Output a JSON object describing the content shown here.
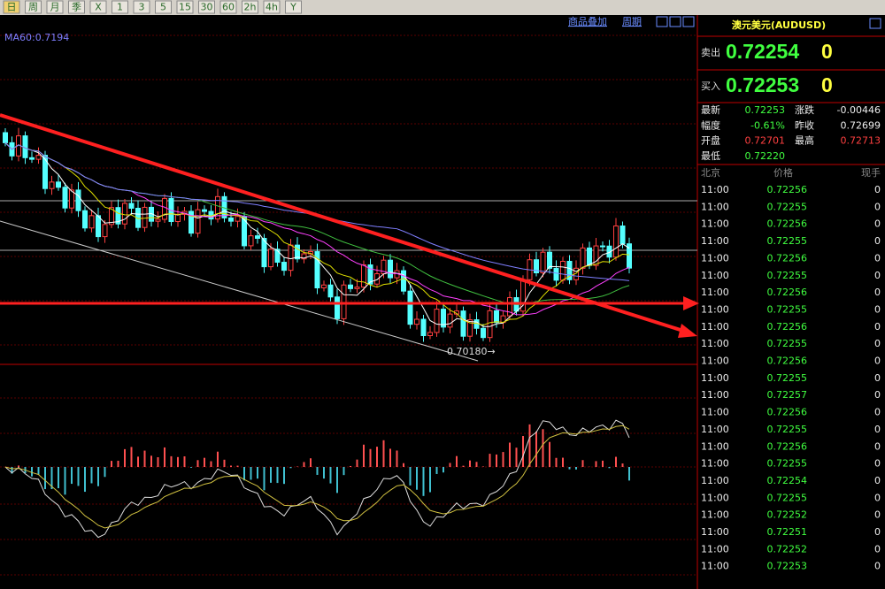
{
  "toolbar": {
    "buttons": [
      "日",
      "周",
      "月",
      "季",
      "X",
      "1",
      "3",
      "5",
      "15",
      "30",
      "60",
      "2h",
      "4h",
      "Y"
    ]
  },
  "chart_header": {
    "overlay": "商品叠加",
    "period": "周期",
    "ma_label": "MA60:0.7194",
    "low_marker": "0.70180→"
  },
  "quote": {
    "title": "澳元美元(AUDUSD)",
    "sell": {
      "label": "卖出",
      "price": "0.72254",
      "digit": "0"
    },
    "buy": {
      "label": "买入",
      "price": "0.72253",
      "digit": "0"
    },
    "stats": [
      [
        "最新",
        "0.72253",
        "涨跌",
        "-0.00446"
      ],
      [
        "幅度",
        "-0.61%",
        "昨收",
        "0.72699"
      ],
      [
        "开盘",
        "0.72701",
        "最高",
        "0.72713"
      ],
      [
        "最低",
        "0.72220"
      ]
    ]
  },
  "ticks": {
    "header": [
      "北京",
      "价格",
      "现手"
    ],
    "rows": [
      [
        "11:00",
        "0.72256",
        "0"
      ],
      [
        "11:00",
        "0.72255",
        "0"
      ],
      [
        "11:00",
        "0.72256",
        "0"
      ],
      [
        "11:00",
        "0.72255",
        "0"
      ],
      [
        "11:00",
        "0.72256",
        "0"
      ],
      [
        "11:00",
        "0.72255",
        "0"
      ],
      [
        "11:00",
        "0.72256",
        "0"
      ],
      [
        "11:00",
        "0.72255",
        "0"
      ],
      [
        "11:00",
        "0.72256",
        "0"
      ],
      [
        "11:00",
        "0.72255",
        "0"
      ],
      [
        "11:00",
        "0.72256",
        "0"
      ],
      [
        "11:00",
        "0.72255",
        "0"
      ],
      [
        "11:00",
        "0.72257",
        "0"
      ],
      [
        "11:00",
        "0.72256",
        "0"
      ],
      [
        "11:00",
        "0.72255",
        "0"
      ],
      [
        "11:00",
        "0.72256",
        "0"
      ],
      [
        "11:00",
        "0.72255",
        "0"
      ],
      [
        "11:00",
        "0.72254",
        "0"
      ],
      [
        "11:00",
        "0.72255",
        "0"
      ],
      [
        "11:00",
        "0.72252",
        "0"
      ],
      [
        "11:00",
        "0.72251",
        "0"
      ],
      [
        "11:00",
        "0.72252",
        "0"
      ],
      [
        "11:00",
        "0.72253",
        "0"
      ]
    ]
  }
}
